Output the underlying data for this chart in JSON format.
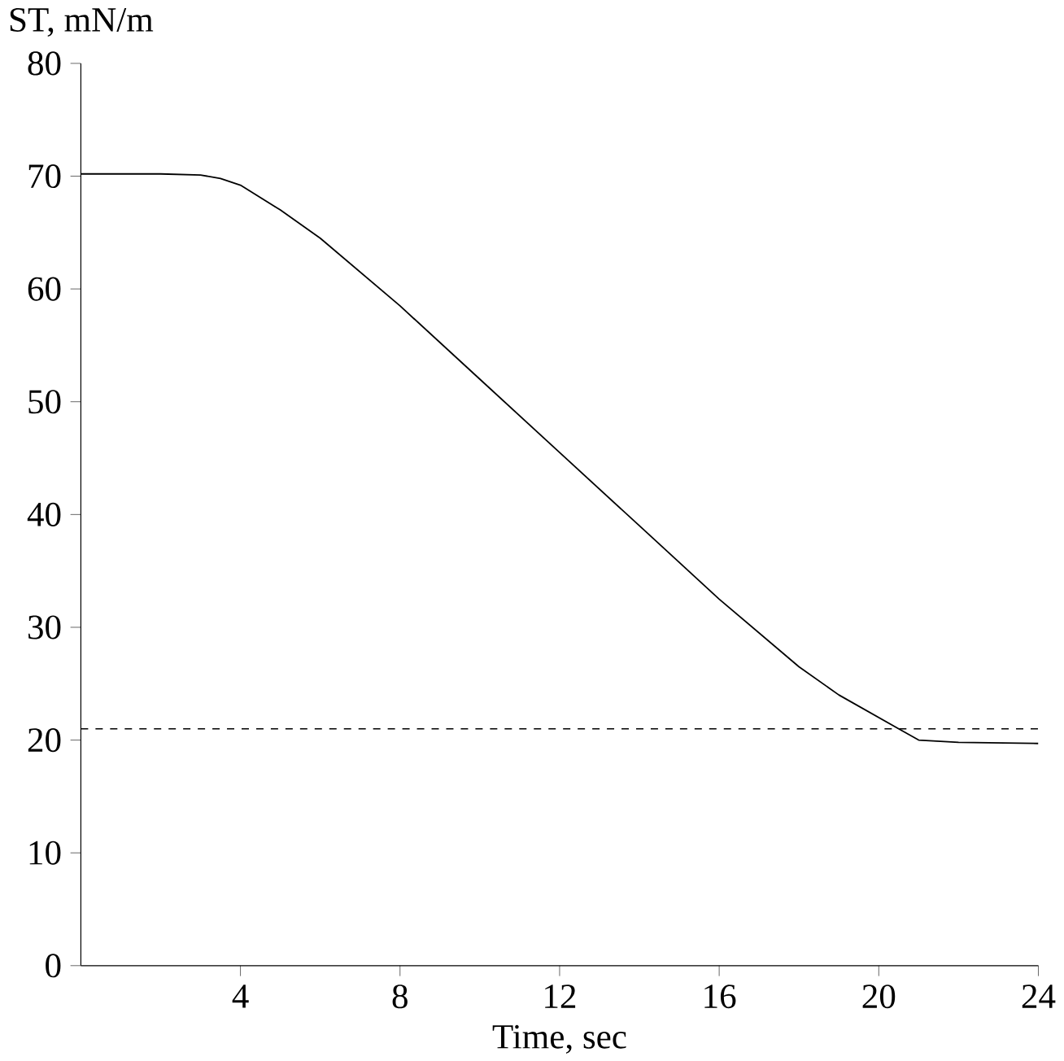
{
  "chart_data": {
    "type": "line",
    "ylabel": "ST, mN/m",
    "xlabel": "Time, sec",
    "x": [
      0,
      2,
      3,
      3.5,
      4,
      5,
      6,
      8,
      10,
      12,
      14,
      16,
      18,
      19,
      20,
      20.5,
      21,
      22,
      24
    ],
    "values": [
      70.2,
      70.2,
      70.1,
      69.8,
      69.2,
      67,
      64.5,
      58.5,
      52,
      45.5,
      39,
      32.5,
      26.5,
      24,
      22,
      21,
      20,
      19.8,
      19.7
    ],
    "color": "#000000",
    "xlim": [
      0,
      24
    ],
    "xticks": [
      4,
      8,
      12,
      16,
      20,
      24
    ],
    "ylim": [
      0,
      80
    ],
    "yticks": [
      0,
      10,
      20,
      30,
      40,
      50,
      60,
      70,
      80
    ],
    "ref_lines": [
      {
        "axis": "y",
        "value": 21,
        "line_style": "dashed",
        "color": "#000000"
      }
    ],
    "grid": false
  }
}
